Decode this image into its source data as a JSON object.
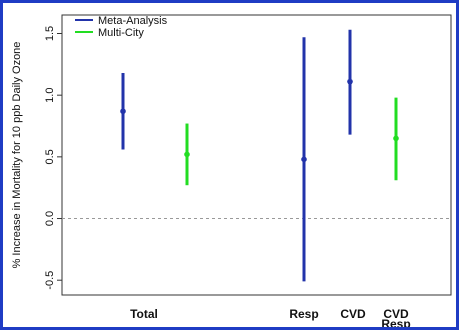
{
  "chart_data": {
    "type": "errorbar",
    "ylabel": "% Increase in Mortality for 10 ppb Daily Ozone",
    "ylim": [
      -0.62,
      1.65
    ],
    "yticks": [
      -0.5,
      0.0,
      0.5,
      1.0,
      1.5
    ],
    "ytick_labels": [
      "-0.5",
      "0.0",
      "0.5",
      "1.0",
      "1.5"
    ],
    "reference_line": 0.0,
    "legend_position": "top-left",
    "categories": [
      {
        "label": "Total",
        "label2": ""
      },
      {
        "label": "Resp",
        "label2": ""
      },
      {
        "label": "CVD",
        "label2": ""
      },
      {
        "label": "CVD",
        "label2": "Resp"
      }
    ],
    "series": [
      {
        "name": "Meta-Analysis",
        "color": "#2233aa",
        "points": [
          {
            "category": "Total",
            "estimate": 0.87,
            "low": 0.56,
            "high": 1.18
          },
          {
            "category": "Resp",
            "estimate": 0.48,
            "low": -0.51,
            "high": 1.47
          },
          {
            "category": "CVD",
            "estimate": 1.11,
            "low": 0.68,
            "high": 1.53
          }
        ]
      },
      {
        "name": "Multi-City",
        "color": "#22dd22",
        "points": [
          {
            "category": "Total",
            "estimate": 0.52,
            "low": 0.27,
            "high": 0.77
          },
          {
            "category": "CVD Resp",
            "estimate": 0.65,
            "low": 0.31,
            "high": 0.98
          }
        ]
      }
    ]
  }
}
